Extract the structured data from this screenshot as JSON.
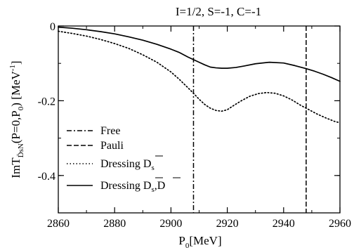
{
  "chart_data": {
    "type": "line",
    "title": "I=1/2, S=-1, C=-1",
    "xlabel": "P0[MeV]",
    "ylabel": "ImT_DsN(P=0,P0) [MeV^-1]",
    "xlim": [
      2860,
      2960
    ],
    "ylim": [
      -0.5,
      0
    ],
    "x_ticks": [
      2860,
      2880,
      2900,
      2920,
      2940,
      2960
    ],
    "y_ticks": [
      0,
      -0.2,
      -0.4
    ],
    "x_tick_labels": [
      "2860",
      "2880",
      "2900",
      "2920",
      "2940",
      "2960"
    ],
    "y_tick_labels": [
      "0",
      "-0.2",
      "-0.4"
    ],
    "legend_position": "bottom-left",
    "grid": false,
    "vlines": [
      {
        "name": "Free",
        "x": 2908,
        "style": "dash-dot"
      },
      {
        "name": "Pauli",
        "x": 2948,
        "style": "dashed"
      }
    ],
    "series": [
      {
        "name": "Dressing D̄s",
        "style": "dotted",
        "x": [
          2860,
          2865,
          2870,
          2875,
          2880,
          2885,
          2890,
          2895,
          2900,
          2903,
          2906,
          2908,
          2910,
          2912,
          2914,
          2916,
          2918,
          2920,
          2922,
          2925,
          2928,
          2931,
          2934,
          2937,
          2940,
          2943,
          2946,
          2949,
          2952,
          2955,
          2958,
          2960
        ],
        "y": [
          -0.014,
          -0.02,
          -0.027,
          -0.036,
          -0.047,
          -0.06,
          -0.077,
          -0.097,
          -0.123,
          -0.143,
          -0.165,
          -0.18,
          -0.196,
          -0.21,
          -0.22,
          -0.226,
          -0.228,
          -0.224,
          -0.214,
          -0.2,
          -0.188,
          -0.181,
          -0.178,
          -0.18,
          -0.187,
          -0.198,
          -0.212,
          -0.224,
          -0.236,
          -0.246,
          -0.255,
          -0.259
        ]
      },
      {
        "name": "Dressing D̄s,D̄",
        "style": "solid",
        "x": [
          2860,
          2865,
          2870,
          2875,
          2880,
          2885,
          2890,
          2895,
          2900,
          2903,
          2906,
          2908,
          2910,
          2912,
          2914,
          2916,
          2918,
          2920,
          2923,
          2926,
          2930,
          2935,
          2940,
          2944,
          2948,
          2951,
          2954,
          2957,
          2960
        ],
        "y": [
          -0.003,
          -0.006,
          -0.01,
          -0.015,
          -0.021,
          -0.029,
          -0.038,
          -0.049,
          -0.062,
          -0.071,
          -0.083,
          -0.09,
          -0.097,
          -0.104,
          -0.11,
          -0.112,
          -0.113,
          -0.113,
          -0.111,
          -0.107,
          -0.101,
          -0.097,
          -0.099,
          -0.106,
          -0.114,
          -0.121,
          -0.129,
          -0.138,
          -0.148
        ]
      }
    ]
  },
  "legend": {
    "free": "Free",
    "pauli": "Pauli",
    "dressing_ds_word": "Dressing",
    "dressing_ds_main": "D",
    "dressing_ds_sub": "s",
    "dressing_dsd_word": "Dressing",
    "dressing_dsd_main1": "D",
    "dressing_dsd_sub": "s",
    "dressing_dsd_main2": ",D"
  },
  "ylabel_parts": {
    "pre": "ImT",
    "sub": "D̄sN",
    "post": "(P=0,P",
    "post_sub": "0",
    "post2": ") [MeV",
    "sup": "-1",
    "end": "]"
  },
  "xlabel_parts": {
    "pre": "P",
    "sub": "0",
    "post": "[MeV]"
  }
}
